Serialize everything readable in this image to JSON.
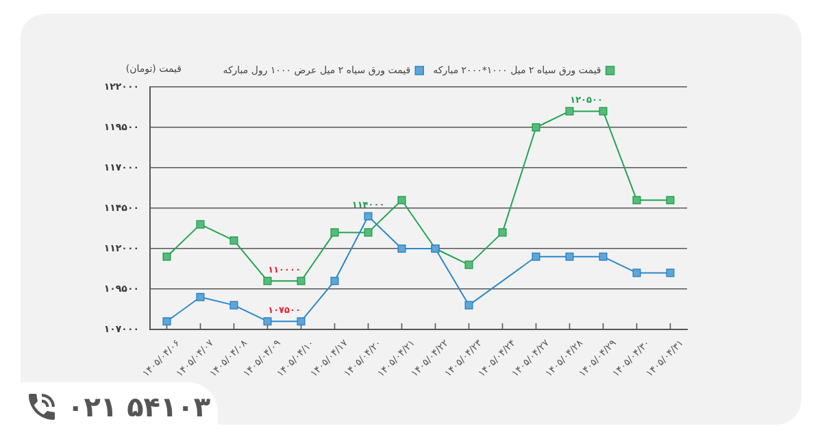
{
  "chart_data": {
    "type": "line",
    "ylabel": "قیمت (تومان)",
    "categories": [
      "۱۴۰۵/۰۴/۰۶",
      "۱۴۰۵/۰۴/۰۷",
      "۱۴۰۵/۰۴/۰۸",
      "۱۴۰۵/۰۴/۰۹",
      "۱۴۰۵/۰۴/۱۰",
      "۱۴۰۵/۰۴/۱۷",
      "۱۴۰۵/۰۴/۲۰",
      "۱۴۰۵/۰۴/۲۱",
      "۱۴۰۵/۰۴/۲۲",
      "۱۴۰۵/۰۴/۲۳",
      "۱۴۰۵/۰۴/۲۴",
      "۱۴۰۵/۰۴/۲۷",
      "۱۴۰۵/۰۴/۲۸",
      "۱۴۰۵/۰۴/۲۹",
      "۱۴۰۵/۰۴/۳۰",
      "۱۴۰۵/۰۴/۳۱"
    ],
    "series": [
      {
        "name": "قیمت ورق سیاه ۲ میل ۱۰۰۰*۲۰۰۰ مبارکه",
        "color": "#22a350",
        "values": [
          111500,
          113500,
          112500,
          110000,
          110000,
          113000,
          113000,
          115000,
          112000,
          111000,
          113000,
          119500,
          120500,
          120500,
          115000,
          115000
        ]
      },
      {
        "name": "قیمت ورق سیاه ۲ میل عرض ۱۰۰۰ رول مبارکه",
        "color": "#2b87c8",
        "values": [
          107500,
          109000,
          108500,
          107500,
          107500,
          110000,
          114000,
          112000,
          112000,
          108500,
          null,
          111500,
          111500,
          111500,
          110500,
          110500
        ]
      }
    ],
    "ylim": [
      107000,
      122000
    ],
    "yticks": [
      {
        "value": 107000,
        "label": "۱۰۷۰۰۰"
      },
      {
        "value": 109500,
        "label": "۱۰۹۵۰۰"
      },
      {
        "value": 112000,
        "label": "۱۱۲۰۰۰"
      },
      {
        "value": 114500,
        "label": "۱۱۴۵۰۰"
      },
      {
        "value": 117000,
        "label": "۱۱۷۰۰۰"
      },
      {
        "value": 119500,
        "label": "۱۱۹۵۰۰"
      },
      {
        "value": 122000,
        "label": "۱۲۲۰۰۰"
      }
    ],
    "grid": "y",
    "legend": "top",
    "marker": "square",
    "annotations": [
      {
        "text": "۱۱۴۰۰۰",
        "x": "۱۴۰۵/۰۴/۲۰",
        "y": 114000
      },
      {
        "text": "۱۱۰۰۰۰",
        "x": "۱۴۰۵/۰۴/۰۹",
        "y": 110000
      },
      {
        "text": "۱۰۷۵۰۰",
        "x": "۱۴۰۵/۰۴/۰۹",
        "y": 107500
      },
      {
        "text": "۱۲۰۵۰۰",
        "x": "۱۴۰۵/۰۴/۲۸",
        "y": 120500
      },
      "۰۲۱ ۵۴۱۰۳"
    ]
  }
}
